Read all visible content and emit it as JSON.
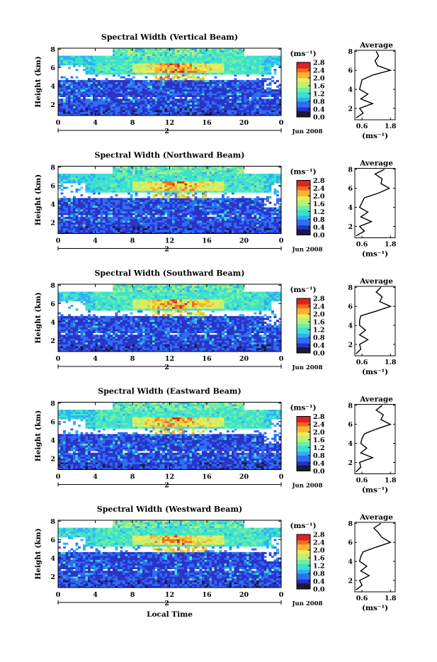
{
  "colors": {
    "background": "#ffffff",
    "axis": "#000000",
    "colormap": [
      "#1a1a3a",
      "#2a33c8",
      "#2f6df5",
      "#2fb0f5",
      "#3de0d0",
      "#6ef0a0",
      "#b9f07a",
      "#f2ea4c",
      "#f9b232",
      "#f06b22",
      "#dc2222"
    ]
  },
  "panels": [
    {
      "title": "Spectral Width (Vertical Beam)",
      "ylabel": "Height (km)",
      "date_label": "Jun 2008",
      "day_marker": "2",
      "colorbar_unit": "(ms⁻¹)",
      "avg_title": "Average",
      "avg_xlabel": "(ms⁻¹)"
    },
    {
      "title": "Spectral Width (Northward Beam)",
      "ylabel": "Height (km)",
      "date_label": "Jun 2008",
      "day_marker": "2",
      "colorbar_unit": "(ms⁻¹)",
      "avg_title": "Average",
      "avg_xlabel": "(ms⁻¹)"
    },
    {
      "title": "Spectral Width (Southward Beam)",
      "ylabel": "Height (km)",
      "date_label": "Jun 2008",
      "day_marker": "2",
      "colorbar_unit": "(ms⁻¹)",
      "avg_title": "Average",
      "avg_xlabel": "(ms⁻¹)"
    },
    {
      "title": "Spectral Width (Eastward Beam)",
      "ylabel": "Height (km)",
      "date_label": "Jun 2008",
      "day_marker": "2",
      "colorbar_unit": "(ms⁻¹)",
      "avg_title": "Average",
      "avg_xlabel": "(ms⁻¹)"
    },
    {
      "title": "Spectral Width (Westward Beam)",
      "ylabel": "Height (km)",
      "date_label": "Jun 2008",
      "day_marker": "2",
      "colorbar_unit": "(ms⁻¹)",
      "avg_title": "Average",
      "avg_xlabel": "(ms⁻¹)"
    }
  ],
  "xlabel_bottom": "Local Time",
  "chart_data": {
    "type": "heatmap",
    "x_ticks": [
      "0",
      "4",
      "8",
      "12",
      "16",
      "20",
      "0"
    ],
    "xlim": [
      0,
      24
    ],
    "y_ticks": [
      "2",
      "4",
      "6",
      "8"
    ],
    "ylim": [
      0.8,
      8.1
    ],
    "colorbar_ticks": [
      "0.0",
      "0.4",
      "0.8",
      "1.2",
      "1.6",
      "2.0",
      "2.4",
      "2.8"
    ],
    "colorbar_range": [
      0.0,
      2.8
    ],
    "avg_x_ticks": [
      "0.6",
      "1.8"
    ],
    "avg_xlim": [
      0.3,
      2.0
    ],
    "avg_y_ticks": [
      "2",
      "4",
      "6",
      "8"
    ],
    "avg_ylim": [
      0.8,
      8.1
    ],
    "profiles": [
      {
        "height": [
          1.0,
          1.5,
          2.0,
          2.5,
          3.0,
          3.5,
          4.0,
          4.5,
          5.0,
          5.5,
          6.0,
          6.5,
          7.0,
          7.5,
          8.0
        ],
        "width": [
          0.35,
          0.65,
          0.5,
          1.05,
          0.55,
          0.85,
          0.5,
          0.55,
          0.6,
          1.05,
          1.8,
          1.25,
          1.15,
          1.3,
          1.2
        ]
      },
      {
        "height": [
          1.0,
          1.5,
          2.0,
          2.5,
          3.0,
          3.5,
          4.0,
          4.5,
          5.0,
          5.5,
          6.0,
          6.5,
          7.0,
          7.5,
          8.0
        ],
        "width": [
          0.35,
          0.7,
          0.5,
          1.0,
          0.55,
          0.85,
          0.5,
          0.6,
          0.7,
          1.3,
          1.75,
          1.4,
          1.45,
          1.15,
          1.55
        ]
      },
      {
        "height": [
          1.0,
          1.5,
          2.0,
          2.5,
          3.0,
          3.5,
          4.0,
          4.5,
          5.0,
          5.5,
          6.0,
          6.5,
          7.0,
          7.5,
          8.0
        ],
        "width": [
          0.35,
          0.55,
          0.5,
          0.85,
          0.5,
          0.75,
          0.5,
          0.5,
          0.55,
          1.2,
          1.8,
          1.35,
          1.45,
          1.2,
          1.4
        ]
      },
      {
        "height": [
          1.0,
          1.5,
          2.0,
          2.5,
          3.0,
          3.5,
          4.0,
          4.5,
          5.0,
          5.5,
          6.0,
          6.5,
          7.0,
          7.5,
          8.0
        ],
        "width": [
          0.35,
          0.55,
          0.5,
          1.05,
          0.55,
          0.8,
          0.55,
          0.6,
          0.7,
          1.2,
          1.8,
          1.4,
          1.5,
          1.2,
          1.45
        ]
      },
      {
        "height": [
          1.0,
          1.5,
          2.0,
          2.5,
          3.0,
          3.5,
          4.0,
          4.5,
          5.0,
          5.5,
          6.0,
          6.5,
          7.0,
          7.5,
          8.0
        ],
        "width": [
          0.35,
          0.6,
          0.5,
          0.9,
          0.55,
          0.8,
          0.5,
          0.55,
          0.65,
          1.2,
          1.8,
          1.45,
          1.3,
          1.1,
          1.4
        ]
      }
    ]
  }
}
